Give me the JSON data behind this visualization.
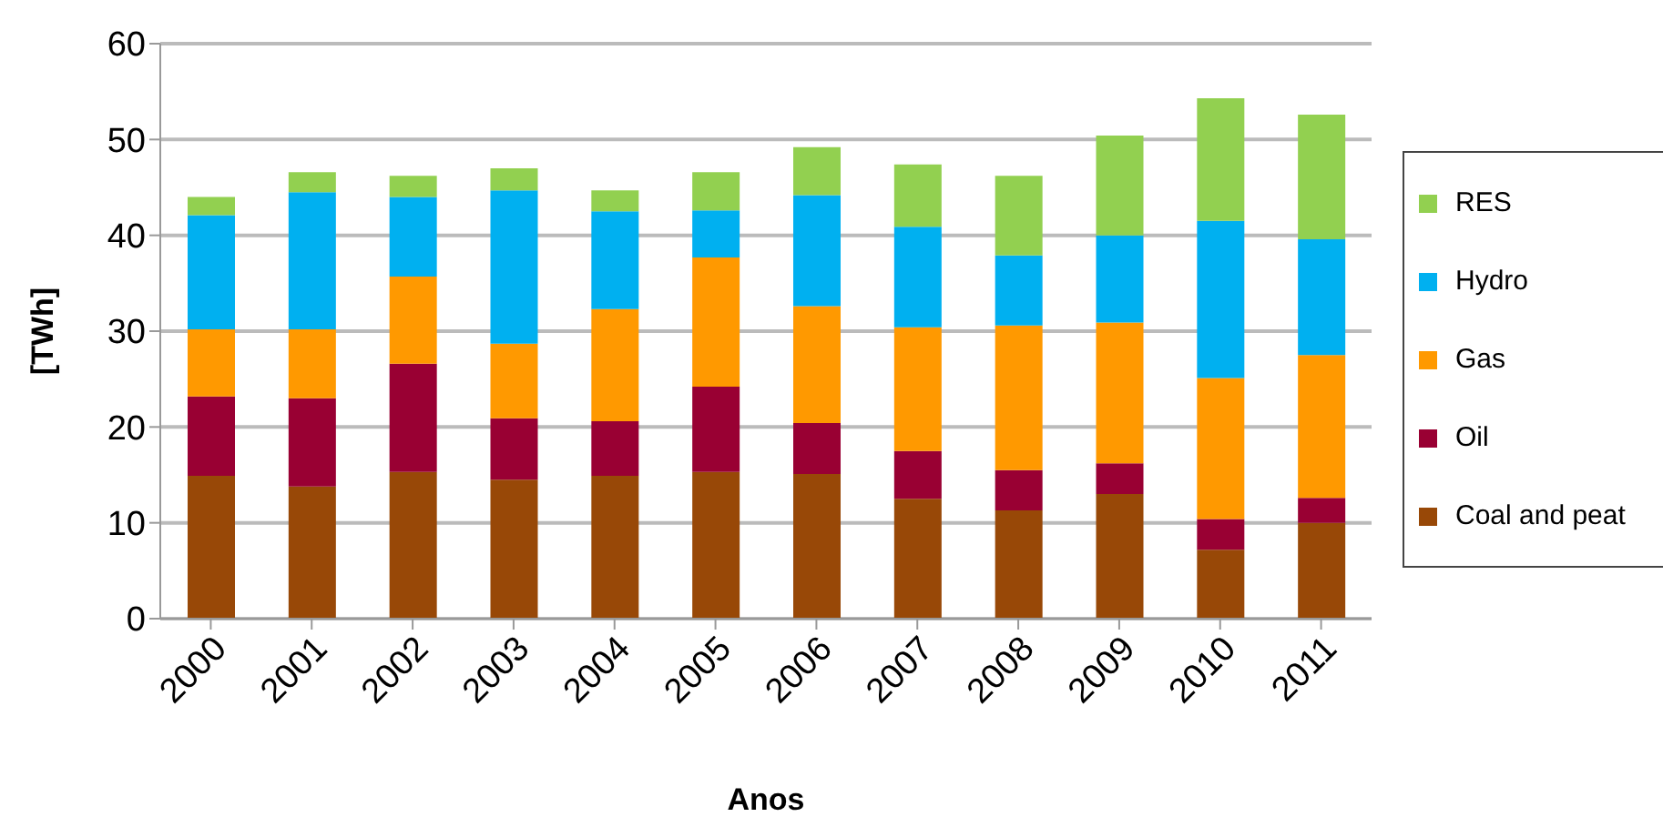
{
  "chart_data": {
    "type": "bar",
    "stacked": true,
    "xlabel": "Anos",
    "ylabel": "[TWh]",
    "categories": [
      "2000",
      "2001",
      "2002",
      "2003",
      "2004",
      "2005",
      "2006",
      "2007",
      "2008",
      "2009",
      "2010",
      "2011"
    ],
    "series": [
      {
        "name": "Coal and peat",
        "color": "#984807",
        "values": [
          14.9,
          13.8,
          15.3,
          14.5,
          14.9,
          15.3,
          15.1,
          12.5,
          11.3,
          13.0,
          7.2,
          10.0
        ]
      },
      {
        "name": "Oil",
        "color": "#990033",
        "values": [
          8.3,
          9.2,
          11.3,
          6.4,
          5.7,
          8.9,
          5.3,
          5.0,
          4.2,
          3.2,
          3.2,
          2.6
        ]
      },
      {
        "name": "Gas",
        "color": "#ff9900",
        "values": [
          7.0,
          7.2,
          9.1,
          7.8,
          11.7,
          13.5,
          12.2,
          12.9,
          15.1,
          14.7,
          14.7,
          14.9
        ]
      },
      {
        "name": "Hydro",
        "color": "#00b0f0",
        "values": [
          11.9,
          14.3,
          8.3,
          16.0,
          10.2,
          4.9,
          11.6,
          10.5,
          7.3,
          9.1,
          16.4,
          12.1
        ]
      },
      {
        "name": "RES",
        "color": "#92d050",
        "values": [
          1.9,
          2.1,
          2.2,
          2.3,
          2.2,
          4.0,
          5.0,
          6.5,
          8.3,
          10.4,
          12.8,
          13.0
        ]
      }
    ],
    "ylim": [
      0,
      60
    ],
    "yticks": [
      0,
      10,
      20,
      30,
      40,
      50,
      60
    ],
    "grid": "y",
    "legend": "right"
  }
}
